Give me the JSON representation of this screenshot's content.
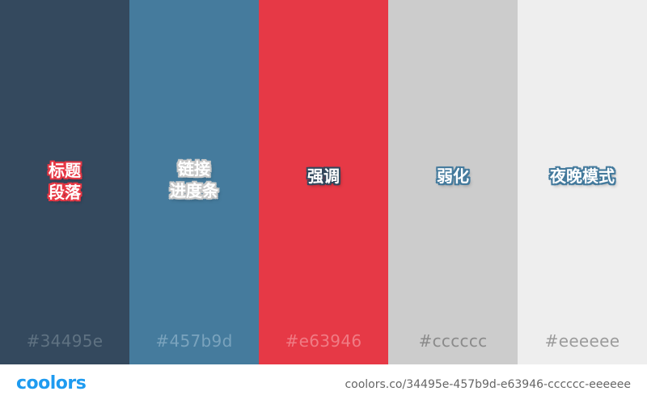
{
  "colors": {
    "outline_red": "#e63946",
    "outline_blue": "#457b9d",
    "outline_navy": "#34495e",
    "outline_gray": "#cccccc",
    "footer_text": "#666666",
    "logo": "#1e9bf0"
  },
  "swatches": [
    {
      "hex": "#34495e",
      "label_lines": [
        "标题",
        "段落"
      ],
      "hex_text_color": "#5f7282"
    },
    {
      "hex": "#457b9d",
      "label_lines": [
        "链接",
        "进度条"
      ],
      "hex_text_color": "#7aa3bd"
    },
    {
      "hex": "#e63946",
      "label_lines": [
        "强调"
      ],
      "hex_text_color": "#f07b84"
    },
    {
      "hex": "#cccccc",
      "label_lines": [
        "弱化"
      ],
      "hex_text_color": "#8a8a8a"
    },
    {
      "hex": "#eeeeee",
      "label_lines": [
        "夜晚模式"
      ],
      "hex_text_color": "#9b9b9b"
    }
  ],
  "footer": {
    "logo_text": "coolors",
    "palette_url": "coolors.co/34495e-457b9d-e63946-cccccc-eeeeee"
  }
}
